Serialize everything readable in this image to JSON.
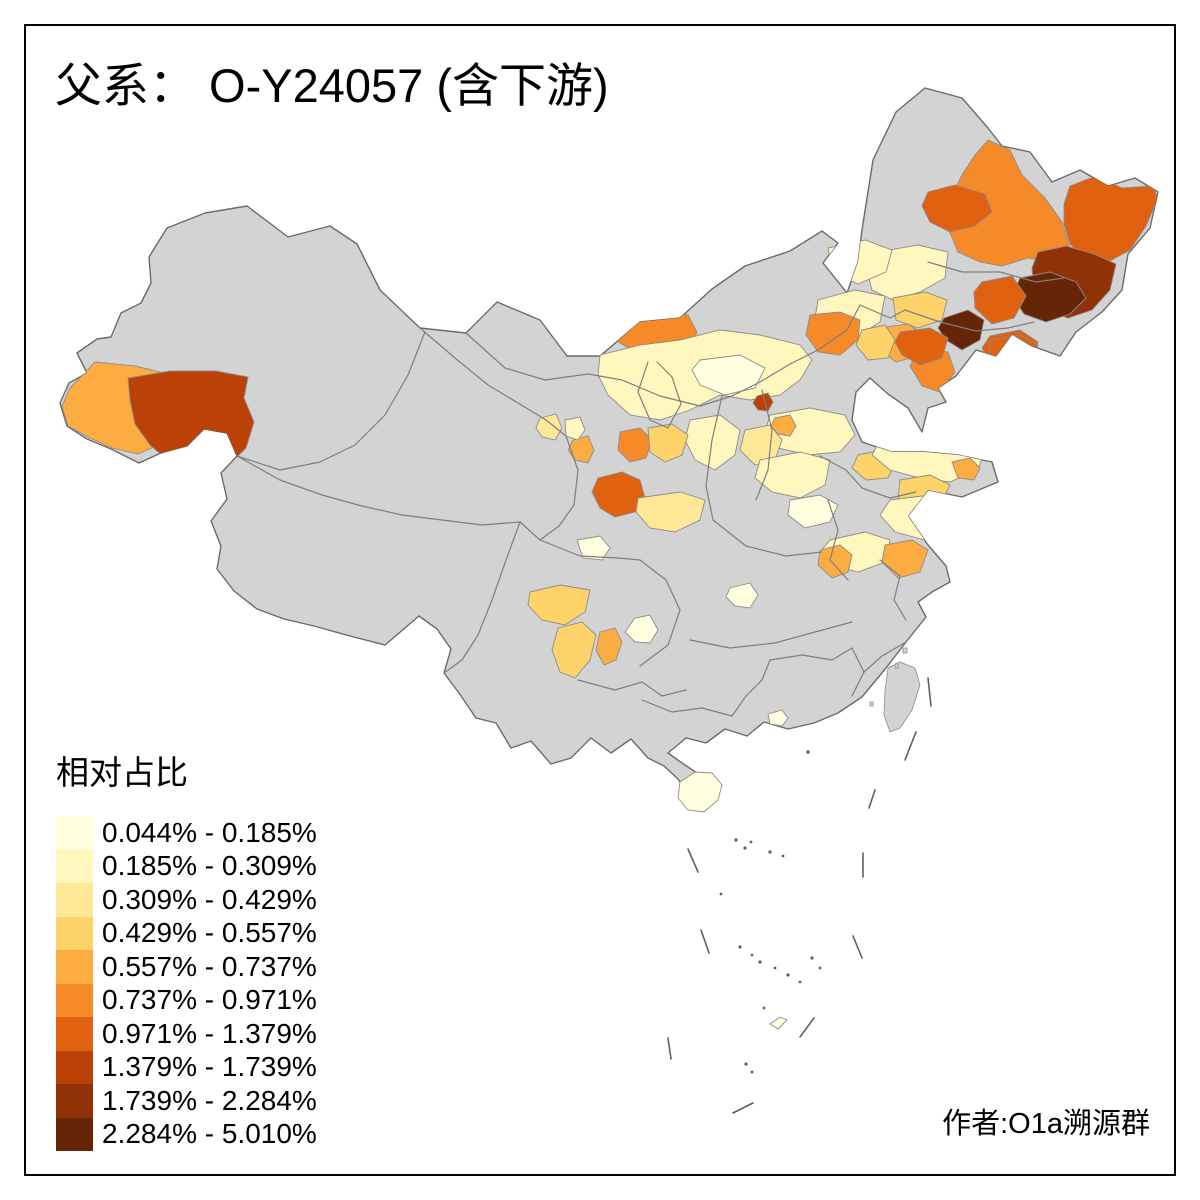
{
  "title": "父系： O-Y24057 (含下游)",
  "attribution": "作者:O1a溯源群",
  "legend": {
    "title": "相对占比",
    "classes": [
      {
        "range": "0.044% - 0.185%",
        "color": "#FFFFDF"
      },
      {
        "range": "0.185% - 0.309%",
        "color": "#FFF7BE"
      },
      {
        "range": "0.309% - 0.429%",
        "color": "#FEE897"
      },
      {
        "range": "0.429% - 0.557%",
        "color": "#FDD36A"
      },
      {
        "range": "0.557% - 0.737%",
        "color": "#FDAC41"
      },
      {
        "range": "0.737% - 0.971%",
        "color": "#F78A28"
      },
      {
        "range": "0.971% - 1.379%",
        "color": "#E0610F"
      },
      {
        "range": "1.379% - 1.739%",
        "color": "#BC4106"
      },
      {
        "range": "1.739% - 2.284%",
        "color": "#913107"
      },
      {
        "range": "2.284% - 5.010%",
        "color": "#662506"
      }
    ]
  },
  "map": {
    "subject": "China prefecture-level choropleth of relative proportion of paternal haplogroup O-Y24057 (incl. downstream)",
    "sea_color": "#FFFFFF",
    "no_data_color": "#D3D3D3",
    "boundary_color": "#7E7E7E",
    "dash_line_color": "#606060",
    "regions": [
      {
        "id": "kashgar",
        "class": 5
      },
      {
        "id": "hotan",
        "class": 8
      },
      {
        "id": "heilongjiang-central",
        "class": 6
      },
      {
        "id": "nenjiang",
        "class": 7
      },
      {
        "id": "heilongjiang-east",
        "class": 7
      },
      {
        "id": "mudanjiang-belt",
        "class": 9
      },
      {
        "id": "yanbian",
        "class": 10
      },
      {
        "id": "jilin-central",
        "class": 7
      },
      {
        "id": "tonghua",
        "class": 10
      },
      {
        "id": "liaoning-east",
        "class": 7
      },
      {
        "id": "liaoning-central",
        "class": 6
      },
      {
        "id": "dalian",
        "class": 7
      },
      {
        "id": "jilin-west",
        "class": 2
      },
      {
        "id": "songyuan-gold",
        "class": 4
      },
      {
        "id": "chifeng",
        "class": 2
      },
      {
        "id": "tongliao-north",
        "class": 2
      },
      {
        "id": "liaoxi",
        "class": 5
      },
      {
        "id": "bayannur",
        "class": 6
      },
      {
        "id": "ulanqab",
        "class": 6
      },
      {
        "id": "chengde",
        "class": 7
      },
      {
        "id": "zhangjiakou",
        "class": 4
      },
      {
        "id": "north-china-cream",
        "class": 2
      },
      {
        "id": "shanxi-white",
        "class": 1
      },
      {
        "id": "hebei-south",
        "class": 2
      },
      {
        "id": "beijing",
        "class": 8
      },
      {
        "id": "datong",
        "class": 5
      },
      {
        "id": "shanxi-gold",
        "class": 3
      },
      {
        "id": "linfen",
        "class": 5
      },
      {
        "id": "shaanxi-north",
        "class": 2
      },
      {
        "id": "xining",
        "class": 5
      },
      {
        "id": "lanzhou",
        "class": 7
      },
      {
        "id": "baiyin",
        "class": 6
      },
      {
        "id": "dingxi",
        "class": 4
      },
      {
        "id": "hexi-1",
        "class": 3
      },
      {
        "id": "hexi-2",
        "class": 2
      },
      {
        "id": "longnan",
        "class": 3
      },
      {
        "id": "henan-cream",
        "class": 2
      },
      {
        "id": "henan-white",
        "class": 1
      },
      {
        "id": "jinan",
        "class": 4
      },
      {
        "id": "shandong-cream",
        "class": 2
      },
      {
        "id": "shandong-gold",
        "class": 4
      },
      {
        "id": "weifang",
        "class": 5
      },
      {
        "id": "jiangsu-cream",
        "class": 2
      },
      {
        "id": "anhui-cream",
        "class": 2
      },
      {
        "id": "yangzhou",
        "class": 5
      },
      {
        "id": "chongqing",
        "class": 5
      },
      {
        "id": "zhangjiajie-white",
        "class": 1
      },
      {
        "id": "suizhou-white",
        "class": 1
      },
      {
        "id": "hubei-white",
        "class": 1
      },
      {
        "id": "sichuan-gold-north",
        "class": 4
      },
      {
        "id": "sichuan-gold-south",
        "class": 4
      },
      {
        "id": "panzhihua",
        "class": 5
      },
      {
        "id": "guangzhou",
        "class": 1
      },
      {
        "id": "hainan",
        "class": 1
      },
      {
        "id": "taiping-islet",
        "class": 1
      }
    ]
  }
}
